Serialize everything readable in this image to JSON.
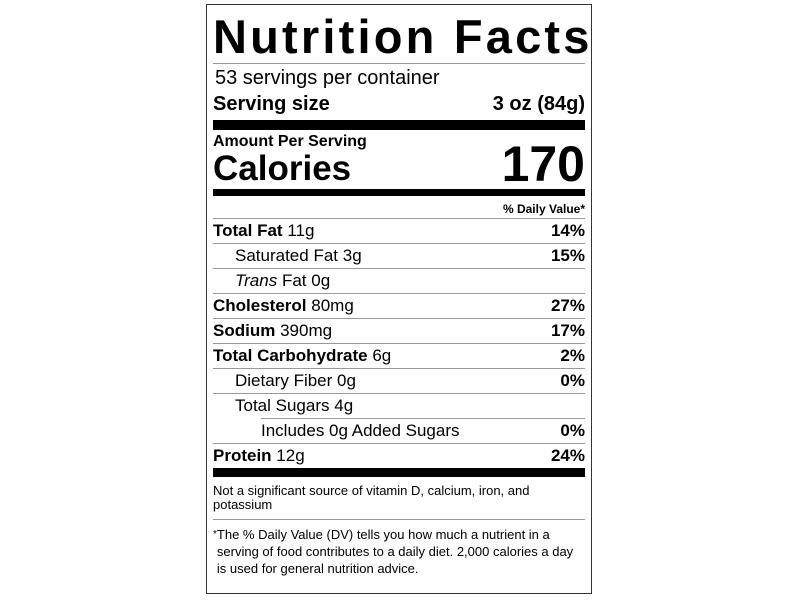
{
  "title": "Nutrition Facts",
  "servings_per_container": "53 servings per container",
  "serving_size": {
    "label": "Serving size",
    "value": "3 oz (84g)"
  },
  "amount_per_serving": "Amount Per Serving",
  "calories": {
    "label": "Calories",
    "value": "170"
  },
  "daily_value_header": "% Daily Value*",
  "nutrients": [
    {
      "name": "Total Fat",
      "amount": "11g",
      "dv": "14%"
    },
    {
      "name": "Saturated Fat",
      "amount": "3g",
      "dv": "15%"
    },
    {
      "name_italic": "Trans",
      "name": "Fat",
      "amount": "0g",
      "dv": ""
    },
    {
      "name": "Cholesterol",
      "amount": "80mg",
      "dv": "27%"
    },
    {
      "name": "Sodium",
      "amount": "390mg",
      "dv": "17%"
    },
    {
      "name": "Total Carbohydrate",
      "amount": "6g",
      "dv": "2%"
    },
    {
      "name": "Dietary Fiber",
      "amount": "0g",
      "dv": "0%"
    },
    {
      "name": "Total Sugars",
      "amount": "4g",
      "dv": ""
    },
    {
      "text": "Includes 0g Added Sugars",
      "dv": "0%"
    },
    {
      "name": "Protein",
      "amount": "12g",
      "dv": "24%"
    }
  ],
  "not_significant": "Not a significant source of vitamin D, calcium, iron, and potassium",
  "footnote_mark": "*",
  "footnote": "The % Daily Value (DV) tells you how much a nutrient in a serving of food contributes to a daily diet. 2,000 calories a day is used for general nutrition advice."
}
